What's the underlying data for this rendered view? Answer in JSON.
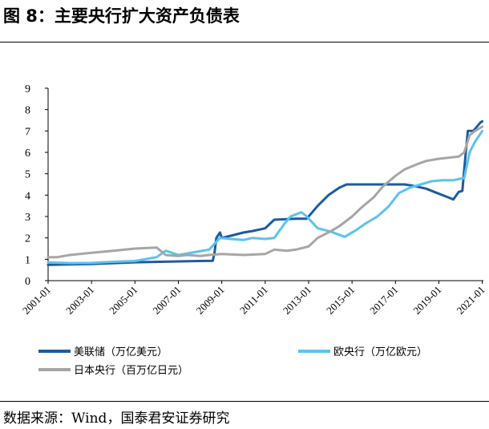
{
  "figure": {
    "title": "图 8：主要央行扩大资产负债表",
    "source": "数据来源：Wind，国泰君安证券研究"
  },
  "colors": {
    "fed": "#1f5aa0",
    "ecb": "#5bc3ee",
    "boj": "#a6a6a6",
    "axis": "#000000"
  },
  "chart_data": {
    "type": "line",
    "xlabel": "",
    "ylabel": "",
    "ylim": [
      0,
      9
    ],
    "yticks": [
      0,
      1,
      2,
      3,
      4,
      5,
      6,
      7,
      8,
      9
    ],
    "xlim": [
      "2001-01",
      "2021-01"
    ],
    "xticks": [
      "2001-01",
      "2003-01",
      "2005-01",
      "2007-01",
      "2009-01",
      "2011-01",
      "2013-01",
      "2015-01",
      "2017-01",
      "2019-01",
      "2021-01"
    ],
    "grid": false,
    "legend_position": "bottom",
    "series": [
      {
        "name": "美联储（万亿美元）",
        "color_key": "fed",
        "points": [
          [
            "2001-01",
            0.74
          ],
          [
            "2003-01",
            0.78
          ],
          [
            "2005-01",
            0.86
          ],
          [
            "2007-01",
            0.9
          ],
          [
            "2008-08",
            0.93
          ],
          [
            "2008-09",
            1.3
          ],
          [
            "2008-10",
            2.0
          ],
          [
            "2008-12",
            2.25
          ],
          [
            "2009-01",
            2.0
          ],
          [
            "2009-06",
            2.1
          ],
          [
            "2010-01",
            2.25
          ],
          [
            "2010-06",
            2.32
          ],
          [
            "2011-01",
            2.45
          ],
          [
            "2011-06",
            2.85
          ],
          [
            "2012-06",
            2.9
          ],
          [
            "2012-12",
            2.9
          ],
          [
            "2013-06",
            3.5
          ],
          [
            "2013-12",
            4.0
          ],
          [
            "2014-06",
            4.35
          ],
          [
            "2014-10",
            4.5
          ],
          [
            "2015-06",
            4.5
          ],
          [
            "2016-06",
            4.5
          ],
          [
            "2017-06",
            4.5
          ],
          [
            "2017-10",
            4.45
          ],
          [
            "2018-06",
            4.3
          ],
          [
            "2018-12",
            4.1
          ],
          [
            "2019-06",
            3.9
          ],
          [
            "2019-09",
            3.8
          ],
          [
            "2019-12",
            4.15
          ],
          [
            "2020-02",
            4.2
          ],
          [
            "2020-03",
            5.2
          ],
          [
            "2020-05",
            7.0
          ],
          [
            "2020-08",
            7.0
          ],
          [
            "2020-12",
            7.4
          ],
          [
            "2021-01",
            7.45
          ]
        ]
      },
      {
        "name": "欧央行（万亿欧元）",
        "color_key": "ecb",
        "points": [
          [
            "2001-01",
            0.85
          ],
          [
            "2002-01",
            0.82
          ],
          [
            "2003-01",
            0.83
          ],
          [
            "2004-01",
            0.88
          ],
          [
            "2005-01",
            0.92
          ],
          [
            "2006-01",
            1.1
          ],
          [
            "2006-06",
            1.4
          ],
          [
            "2007-01",
            1.2
          ],
          [
            "2008-06",
            1.45
          ],
          [
            "2008-12",
            2.0
          ],
          [
            "2009-06",
            1.95
          ],
          [
            "2010-01",
            1.9
          ],
          [
            "2010-06",
            2.0
          ],
          [
            "2011-01",
            1.95
          ],
          [
            "2011-06",
            2.0
          ],
          [
            "2011-12",
            2.7
          ],
          [
            "2012-03",
            3.0
          ],
          [
            "2012-06",
            3.1
          ],
          [
            "2012-09",
            3.2
          ],
          [
            "2012-12",
            3.0
          ],
          [
            "2013-06",
            2.45
          ],
          [
            "2014-01",
            2.3
          ],
          [
            "2014-09",
            2.05
          ],
          [
            "2015-03",
            2.35
          ],
          [
            "2015-09",
            2.7
          ],
          [
            "2016-03",
            3.0
          ],
          [
            "2016-09",
            3.45
          ],
          [
            "2017-03",
            4.1
          ],
          [
            "2017-09",
            4.35
          ],
          [
            "2018-03",
            4.5
          ],
          [
            "2018-09",
            4.65
          ],
          [
            "2019-03",
            4.7
          ],
          [
            "2019-09",
            4.7
          ],
          [
            "2020-03",
            4.8
          ],
          [
            "2020-06",
            6.0
          ],
          [
            "2020-09",
            6.5
          ],
          [
            "2021-01",
            7.0
          ]
        ]
      },
      {
        "name": "日本央行（百万亿日元）",
        "color_key": "boj",
        "points": [
          [
            "2001-01",
            1.1
          ],
          [
            "2001-06",
            1.1
          ],
          [
            "2002-01",
            1.2
          ],
          [
            "2003-01",
            1.3
          ],
          [
            "2004-01",
            1.4
          ],
          [
            "2005-01",
            1.5
          ],
          [
            "2006-01",
            1.55
          ],
          [
            "2006-06",
            1.2
          ],
          [
            "2007-01",
            1.15
          ],
          [
            "2007-06",
            1.2
          ],
          [
            "2008-01",
            1.15
          ],
          [
            "2008-06",
            1.2
          ],
          [
            "2009-01",
            1.25
          ],
          [
            "2010-01",
            1.2
          ],
          [
            "2011-01",
            1.25
          ],
          [
            "2011-06",
            1.45
          ],
          [
            "2012-01",
            1.4
          ],
          [
            "2012-06",
            1.45
          ],
          [
            "2013-01",
            1.6
          ],
          [
            "2013-06",
            2.0
          ],
          [
            "2014-01",
            2.3
          ],
          [
            "2014-06",
            2.55
          ],
          [
            "2015-01",
            3.0
          ],
          [
            "2015-06",
            3.4
          ],
          [
            "2016-01",
            3.9
          ],
          [
            "2016-06",
            4.4
          ],
          [
            "2017-01",
            4.9
          ],
          [
            "2017-06",
            5.2
          ],
          [
            "2018-01",
            5.45
          ],
          [
            "2018-06",
            5.6
          ],
          [
            "2019-01",
            5.7
          ],
          [
            "2019-06",
            5.75
          ],
          [
            "2019-12",
            5.8
          ],
          [
            "2020-03",
            6.0
          ],
          [
            "2020-06",
            6.8
          ],
          [
            "2020-09",
            7.0
          ],
          [
            "2021-01",
            7.2
          ]
        ]
      }
    ]
  }
}
